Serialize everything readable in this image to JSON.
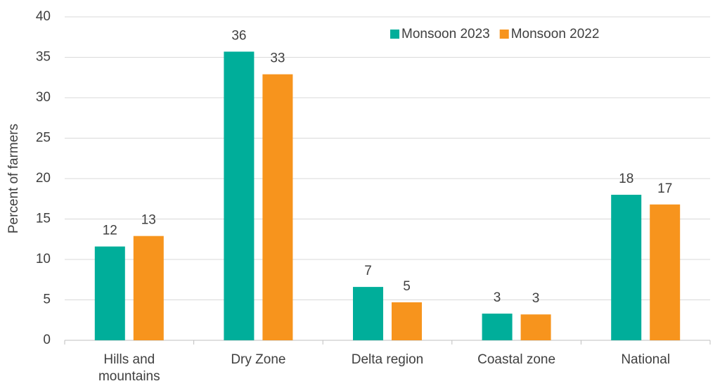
{
  "chart_data": {
    "type": "bar",
    "y_label": "Percent of farmers",
    "categories": [
      "Hills and mountains",
      "Dry Zone",
      "Delta region",
      "Coastal zone",
      "National"
    ],
    "series": [
      {
        "name": "Monsoon 2023",
        "color": "#00ae9a",
        "values": [
          11.6,
          35.7,
          6.6,
          3.3,
          18.0
        ],
        "value_labels": [
          "12",
          "36",
          "7",
          "3",
          "18"
        ]
      },
      {
        "name": "Monsoon 2022",
        "color": "#f7941d",
        "values": [
          12.9,
          32.9,
          4.7,
          3.2,
          16.8
        ],
        "value_labels": [
          "13",
          "33",
          "5",
          "3",
          "17"
        ]
      }
    ],
    "ylim": [
      0,
      40
    ],
    "yticks": [
      0,
      5,
      10,
      15,
      20,
      25,
      30,
      35,
      40
    ],
    "grid": true,
    "legend": "top-right"
  }
}
